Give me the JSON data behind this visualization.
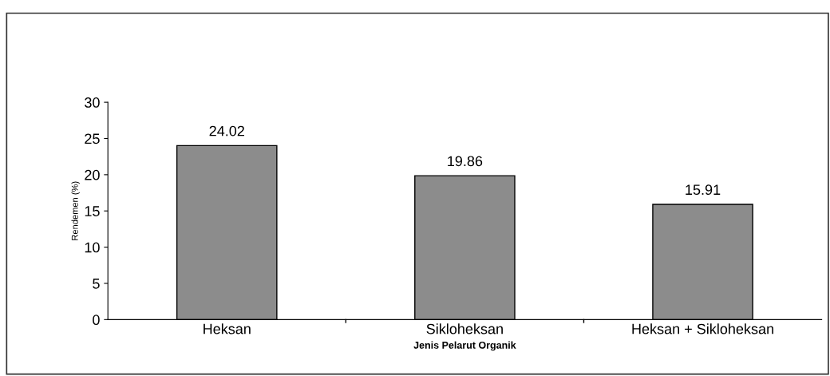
{
  "chart_data": {
    "type": "bar",
    "categories": [
      "Heksan",
      "Sikloheksan",
      "Heksan + Sikloheksan"
    ],
    "values": [
      24.02,
      19.86,
      15.91
    ],
    "color": "#8c8c8c",
    "ylim": [
      0,
      30
    ],
    "yticks": [
      0,
      5,
      10,
      15,
      20,
      25,
      30
    ],
    "ylabel": "Rendemen (%)",
    "xlabel": "Jenis Pelarut Organik",
    "data_labels": true,
    "grid": false,
    "legend": false
  }
}
